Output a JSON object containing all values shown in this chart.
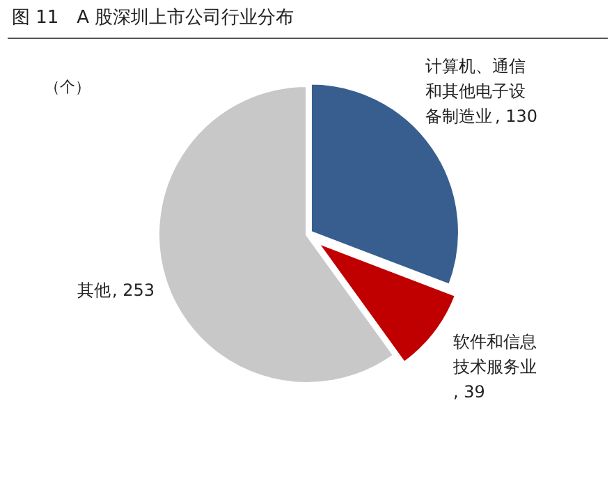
{
  "chart_data": {
    "type": "pie",
    "title": "图 11　A 股深圳上市公司行业分布",
    "annotations": [
      "（个）"
    ],
    "categories": [
      "计算机、通信和其他电子设备制造业",
      "软件和信息技术服务业",
      "其他"
    ],
    "values": [
      130,
      39,
      253
    ],
    "value_labels": [
      ", 130",
      ", 39",
      ", 253"
    ],
    "colors": [
      "#375e8f",
      "#c00000",
      "#c8c8c8"
    ]
  }
}
